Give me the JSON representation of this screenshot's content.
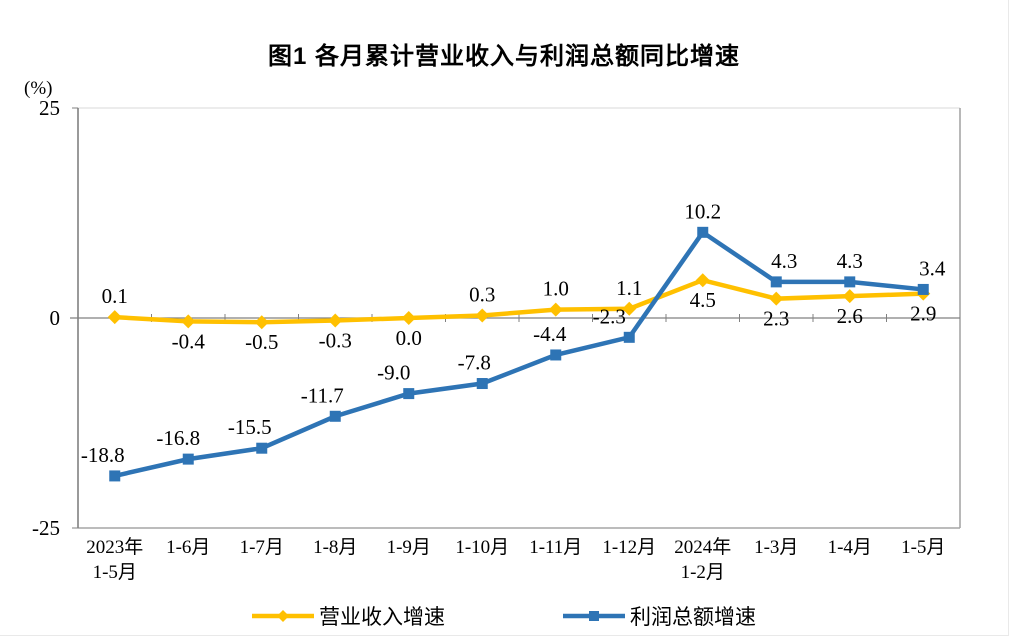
{
  "chart_data": {
    "type": "line",
    "title": "图1  各月累计营业收入与利润总额同比增速",
    "unit_label": "(%)",
    "categories": [
      "2023年\n1-5月",
      "1-6月",
      "1-7月",
      "1-8月",
      "1-9月",
      "1-10月",
      "1-11月",
      "1-12月",
      "2024年\n1-2月",
      "1-3月",
      "1-4月",
      "1-5月"
    ],
    "ylim": [
      -25,
      25
    ],
    "yticks": [
      25,
      0,
      -25
    ],
    "grid": "zero-line-only",
    "legend_position": "bottom",
    "series": [
      {
        "name": "营业收入增速",
        "color": "#FFC000",
        "marker": "diamond",
        "values": [
          0.1,
          -0.4,
          -0.5,
          -0.3,
          0.0,
          0.3,
          1.0,
          1.1,
          4.5,
          2.3,
          2.6,
          2.9
        ],
        "label_side": [
          "above",
          "below",
          "below",
          "below",
          "below",
          "above",
          "above",
          "above",
          "below",
          "below",
          "below",
          "below"
        ],
        "label_dx": [
          0,
          0,
          0,
          0,
          0,
          0,
          0,
          0,
          0,
          0,
          0,
          0
        ]
      },
      {
        "name": "利润总额增速",
        "color": "#2E74B5",
        "marker": "square",
        "values": [
          -18.8,
          -16.8,
          -15.5,
          -11.7,
          -9.0,
          -7.8,
          -4.4,
          -2.3,
          10.2,
          4.3,
          4.3,
          3.4
        ],
        "label_side": [
          "above",
          "above",
          "above",
          "above",
          "above",
          "above",
          "above",
          "above",
          "above",
          "above",
          "above",
          "above"
        ],
        "label_dx": [
          -12,
          -10,
          -12,
          -13,
          -15,
          -8,
          -6,
          -20,
          0,
          8,
          0,
          9
        ]
      }
    ],
    "axis_colors": {
      "axis": "#808080",
      "plot_border_top": "#d9d9d9",
      "plot_border_side": "#a6a6a6",
      "text": "#000000"
    }
  }
}
